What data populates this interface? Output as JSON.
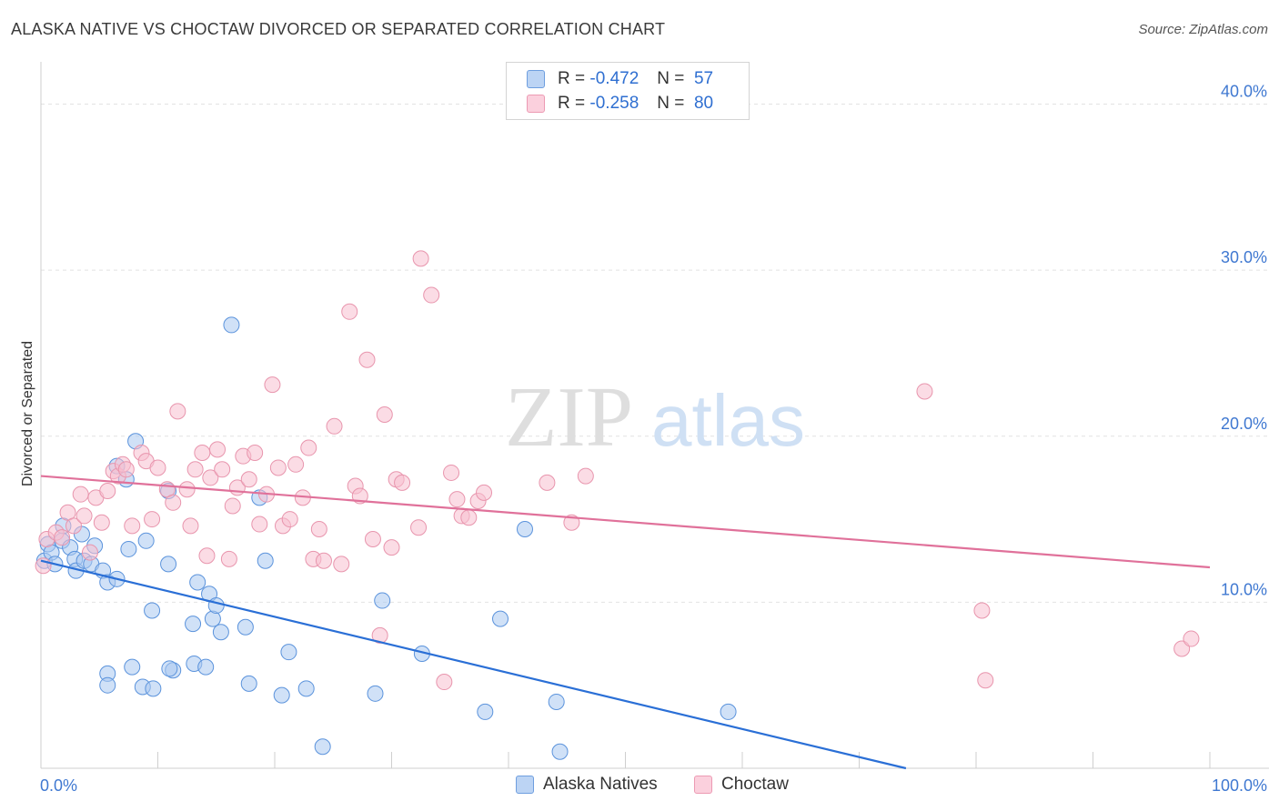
{
  "header": {
    "title": "ALASKA NATIVE VS CHOCTAW DIVORCED OR SEPARATED CORRELATION CHART",
    "source": "Source: ZipAtlas.com"
  },
  "watermark": {
    "zip": "ZIP",
    "atlas": "atlas"
  },
  "legend": {
    "rows": [
      {
        "r_label": "R =",
        "r_value": "-0.472",
        "n_label": "N =",
        "n_value": "57",
        "color": "#a9c8f0"
      },
      {
        "r_label": "R =",
        "r_value": "-0.258",
        "n_label": "N =",
        "n_value": "80",
        "color": "#f7bfd0"
      }
    ]
  },
  "bottom_legend": {
    "series1": "Alaska Natives",
    "series2": "Choctaw"
  },
  "chart_data": {
    "type": "scatter",
    "title": "ALASKA NATIVE VS CHOCTAW DIVORCED OR SEPARATED CORRELATION CHART",
    "xlabel": "",
    "ylabel": "Divorced or Separated",
    "xlim": [
      0,
      100
    ],
    "ylim": [
      0,
      42
    ],
    "x_tick_labels": [
      "0.0%",
      "100.0%"
    ],
    "y_ticks": [
      10,
      20,
      30,
      40
    ],
    "y_tick_labels": [
      "10.0%",
      "20.0%",
      "30.0%",
      "40.0%"
    ],
    "grid": true,
    "legend_position": "top-center",
    "series": [
      {
        "name": "Alaska Natives",
        "color": "#a9c8f0",
        "stroke": "#5b93dc",
        "line_color": "#2a6fd6",
        "trend": {
          "x": [
            0,
            74
          ],
          "y": [
            12.5,
            0.0
          ]
        },
        "points": [
          [
            0.3,
            12.5
          ],
          [
            0.6,
            13.5
          ],
          [
            0.9,
            13.0
          ],
          [
            1.2,
            12.3
          ],
          [
            1.8,
            13.7
          ],
          [
            1.9,
            14.6
          ],
          [
            2.5,
            13.3
          ],
          [
            2.9,
            12.6
          ],
          [
            3.0,
            11.9
          ],
          [
            3.5,
            14.1
          ],
          [
            3.7,
            12.5
          ],
          [
            4.3,
            12.3
          ],
          [
            4.6,
            13.4
          ],
          [
            5.3,
            11.9
          ],
          [
            5.7,
            11.2
          ],
          [
            6.5,
            11.4
          ],
          [
            6.5,
            18.2
          ],
          [
            7.3,
            17.4
          ],
          [
            7.5,
            13.2
          ],
          [
            8.1,
            19.7
          ],
          [
            9.0,
            13.7
          ],
          [
            9.5,
            9.5
          ],
          [
            10.9,
            16.7
          ],
          [
            10.9,
            12.3
          ],
          [
            11.3,
            5.9
          ],
          [
            13.0,
            8.7
          ],
          [
            13.1,
            6.3
          ],
          [
            13.4,
            11.2
          ],
          [
            14.1,
            6.1
          ],
          [
            14.4,
            10.5
          ],
          [
            14.7,
            9.0
          ],
          [
            15.0,
            9.8
          ],
          [
            15.4,
            8.2
          ],
          [
            16.3,
            26.7
          ],
          [
            17.5,
            8.5
          ],
          [
            17.8,
            5.1
          ],
          [
            18.7,
            16.3
          ],
          [
            19.2,
            12.5
          ],
          [
            20.6,
            4.4
          ],
          [
            21.2,
            7.0
          ],
          [
            22.7,
            4.8
          ],
          [
            24.1,
            1.3
          ],
          [
            28.6,
            4.5
          ],
          [
            29.2,
            10.1
          ],
          [
            32.6,
            6.9
          ],
          [
            38.0,
            3.4
          ],
          [
            39.3,
            9.0
          ],
          [
            41.4,
            14.4
          ],
          [
            44.1,
            4.0
          ],
          [
            44.4,
            1.0
          ],
          [
            58.8,
            3.4
          ],
          [
            5.7,
            5.7
          ],
          [
            5.7,
            5.0
          ],
          [
            7.8,
            6.1
          ],
          [
            8.7,
            4.9
          ],
          [
            9.6,
            4.8
          ],
          [
            11.0,
            6.0
          ]
        ]
      },
      {
        "name": "Choctaw",
        "color": "#f7bfd0",
        "stroke": "#e895ad",
        "line_color": "#e0719a",
        "trend": {
          "x": [
            0,
            100
          ],
          "y": [
            17.6,
            12.1
          ]
        },
        "points": [
          [
            0.2,
            12.2
          ],
          [
            0.5,
            13.8
          ],
          [
            1.3,
            14.2
          ],
          [
            1.8,
            13.9
          ],
          [
            2.3,
            15.4
          ],
          [
            2.8,
            14.6
          ],
          [
            3.4,
            16.5
          ],
          [
            3.7,
            15.2
          ],
          [
            4.2,
            13.0
          ],
          [
            4.7,
            16.3
          ],
          [
            5.2,
            14.8
          ],
          [
            5.7,
            16.7
          ],
          [
            6.2,
            17.9
          ],
          [
            6.6,
            17.6
          ],
          [
            7.0,
            18.3
          ],
          [
            7.3,
            18.0
          ],
          [
            7.8,
            14.6
          ],
          [
            8.6,
            19.0
          ],
          [
            9.0,
            18.5
          ],
          [
            9.5,
            15.0
          ],
          [
            10.0,
            18.1
          ],
          [
            10.8,
            16.8
          ],
          [
            11.3,
            16.0
          ],
          [
            11.7,
            21.5
          ],
          [
            12.5,
            16.8
          ],
          [
            12.8,
            14.6
          ],
          [
            13.2,
            18.0
          ],
          [
            13.8,
            19.0
          ],
          [
            14.2,
            12.8
          ],
          [
            14.5,
            17.5
          ],
          [
            15.1,
            19.2
          ],
          [
            15.5,
            18.0
          ],
          [
            16.1,
            12.6
          ],
          [
            16.4,
            15.8
          ],
          [
            16.8,
            16.9
          ],
          [
            17.3,
            18.8
          ],
          [
            17.8,
            17.4
          ],
          [
            18.3,
            19.0
          ],
          [
            18.7,
            14.7
          ],
          [
            19.3,
            16.5
          ],
          [
            19.8,
            23.1
          ],
          [
            20.3,
            18.1
          ],
          [
            20.7,
            14.6
          ],
          [
            21.3,
            15.0
          ],
          [
            21.8,
            18.3
          ],
          [
            22.4,
            16.3
          ],
          [
            22.9,
            19.3
          ],
          [
            23.3,
            12.6
          ],
          [
            23.8,
            14.4
          ],
          [
            24.2,
            12.5
          ],
          [
            25.1,
            20.6
          ],
          [
            25.7,
            12.3
          ],
          [
            26.4,
            27.5
          ],
          [
            26.9,
            17.0
          ],
          [
            27.3,
            16.4
          ],
          [
            27.9,
            24.6
          ],
          [
            28.4,
            13.8
          ],
          [
            29.0,
            8.0
          ],
          [
            29.4,
            21.3
          ],
          [
            30.0,
            13.3
          ],
          [
            30.4,
            17.4
          ],
          [
            30.9,
            17.2
          ],
          [
            32.3,
            14.5
          ],
          [
            32.5,
            30.7
          ],
          [
            33.4,
            28.5
          ],
          [
            34.5,
            5.2
          ],
          [
            35.1,
            17.8
          ],
          [
            35.6,
            16.2
          ],
          [
            36.0,
            15.2
          ],
          [
            36.6,
            15.1
          ],
          [
            37.4,
            16.1
          ],
          [
            37.9,
            16.6
          ],
          [
            43.3,
            17.2
          ],
          [
            45.4,
            14.8
          ],
          [
            46.6,
            17.6
          ],
          [
            75.6,
            22.7
          ],
          [
            80.5,
            9.5
          ],
          [
            80.8,
            5.3
          ],
          [
            97.6,
            7.2
          ],
          [
            98.4,
            7.8
          ]
        ]
      }
    ]
  }
}
